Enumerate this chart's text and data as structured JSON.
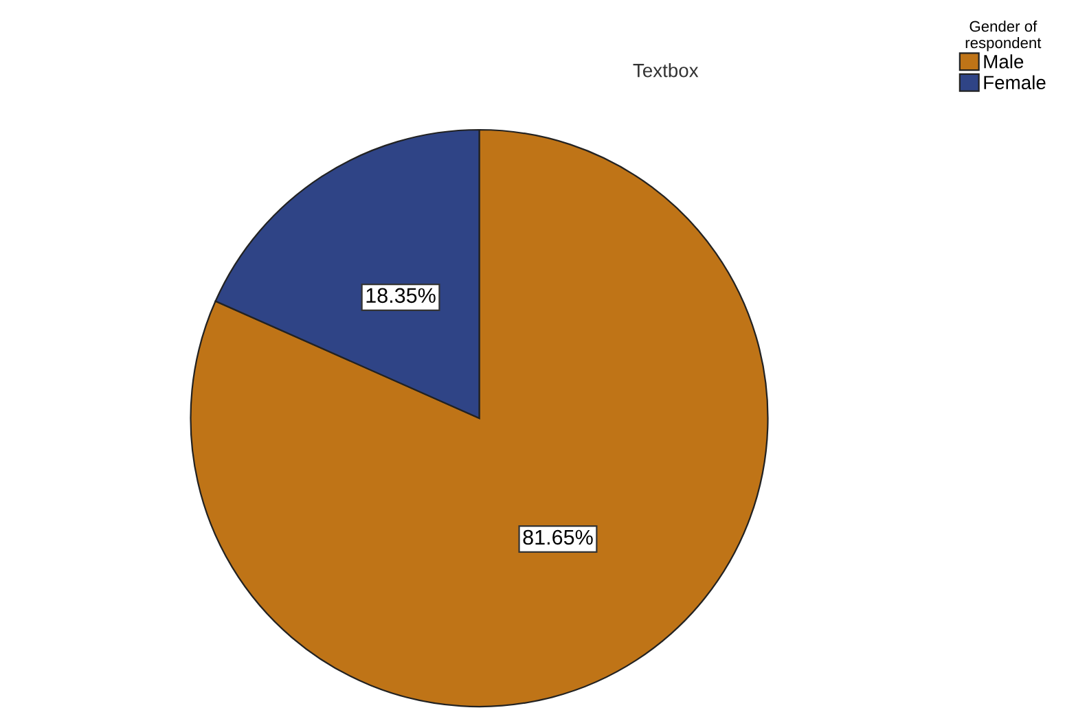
{
  "chart_data": {
    "type": "pie",
    "title": "Textbox",
    "legend_title": "Gender of\nrespondent",
    "legend": "top right",
    "categories": [
      "Male",
      "Female"
    ],
    "values": [
      81.65,
      18.35
    ],
    "colors": [
      "#bf7417",
      "#2f4486"
    ],
    "value_labels": [
      "81.65%",
      "18.35%"
    ]
  }
}
